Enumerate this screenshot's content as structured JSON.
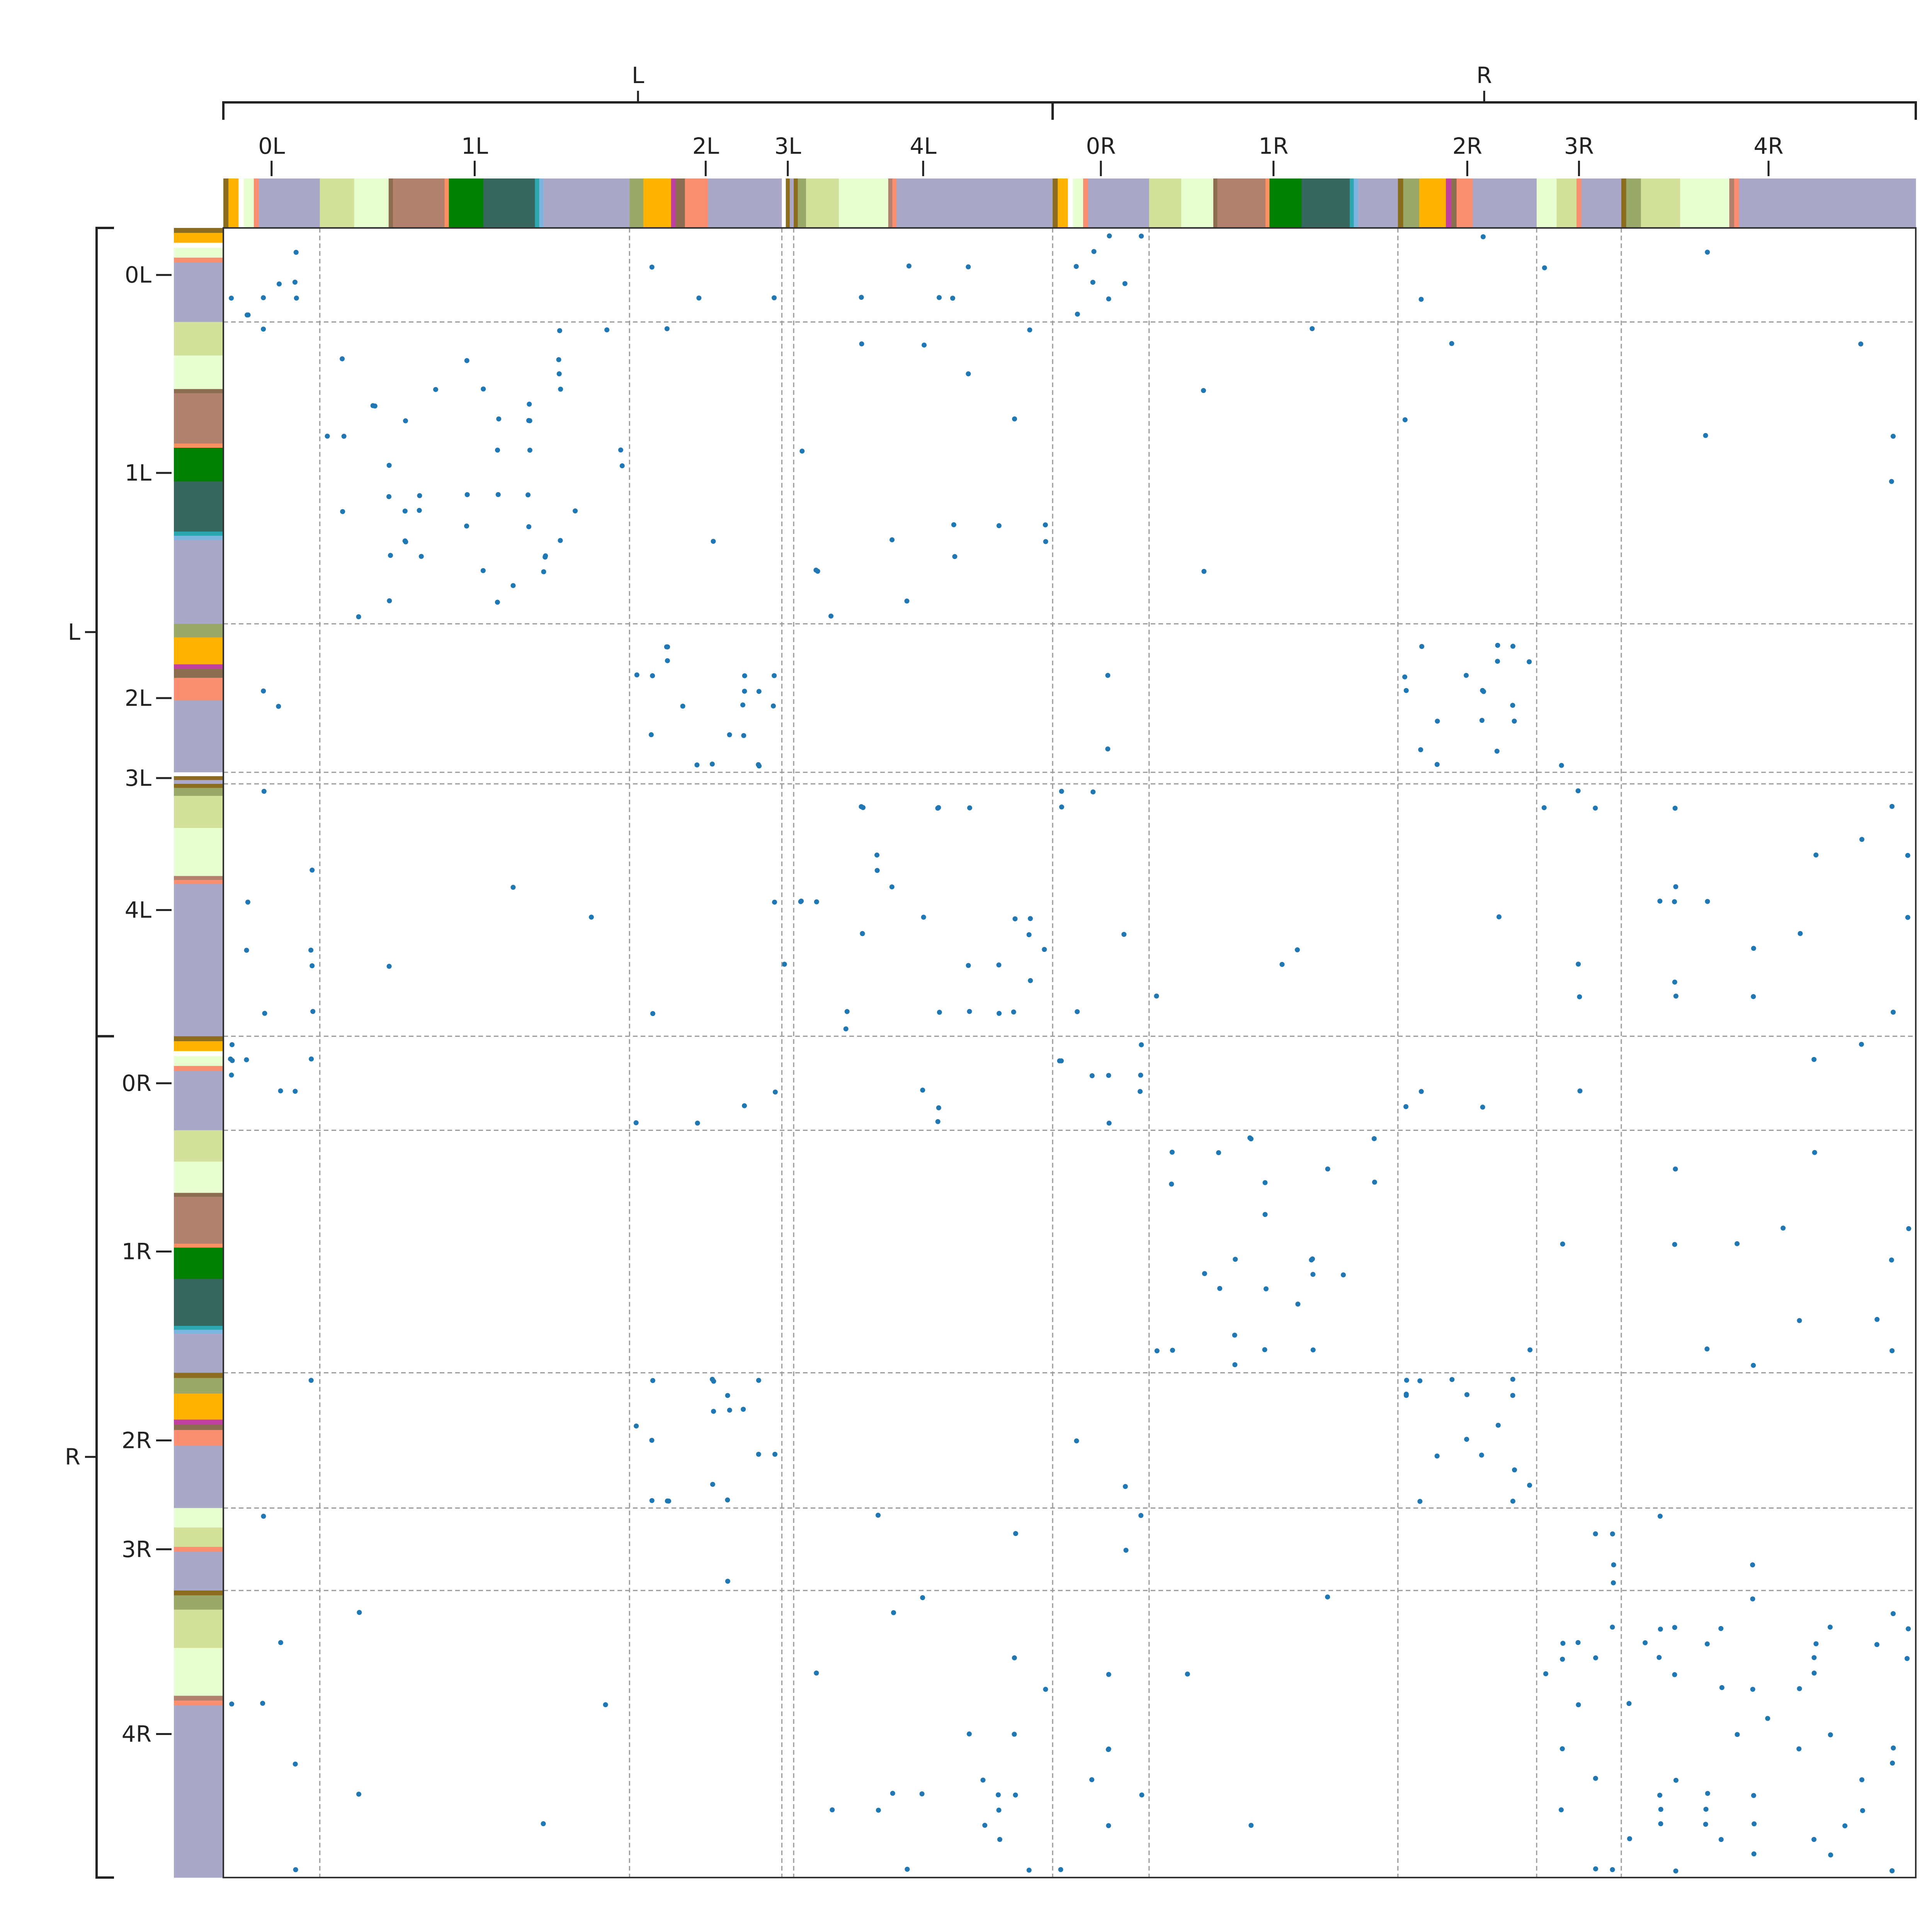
{
  "chart_data": {
    "type": "scatter",
    "title": "",
    "xlabel": "",
    "ylabel": "",
    "grid": false,
    "legend": "none",
    "groups": [
      "L",
      "R"
    ],
    "blocks": [
      "0L",
      "1L",
      "2L",
      "3L",
      "4L",
      "0R",
      "1R",
      "2R",
      "3R",
      "4R"
    ],
    "block_fractions": [
      0.057,
      0.183,
      0.09,
      0.007,
      0.153,
      0.057,
      0.147,
      0.082,
      0.05,
      0.174
    ],
    "block_groups": [
      "L",
      "L",
      "L",
      "L",
      "L",
      "R",
      "R",
      "R",
      "R",
      "R"
    ],
    "point_color": "#1f77b4",
    "divider_color": "#999999",
    "density_matrix": [
      [
        0.22,
        0.0,
        0.05,
        0.02,
        0.05,
        0.22,
        0.0,
        0.03,
        0.02,
        0.01
      ],
      [
        0.01,
        0.12,
        0.01,
        0.0,
        0.05,
        0.0,
        0.01,
        0.01,
        0.0,
        0.01
      ],
      [
        0.04,
        0.0,
        0.2,
        0.05,
        0.0,
        0.04,
        0.0,
        0.2,
        0.02,
        0.0
      ],
      [
        0.0,
        0.0,
        0.0,
        0.3,
        0.02,
        0.0,
        0.0,
        0.0,
        0.05,
        0.0
      ],
      [
        0.08,
        0.01,
        0.01,
        0.1,
        0.1,
        0.05,
        0.01,
        0.01,
        0.06,
        0.05
      ],
      [
        0.2,
        0.0,
        0.06,
        0.01,
        0.03,
        0.22,
        0.0,
        0.05,
        0.04,
        0.02
      ],
      [
        0.0,
        0.0,
        0.0,
        0.0,
        0.0,
        0.0,
        0.1,
        0.01,
        0.01,
        0.04
      ],
      [
        0.02,
        0.0,
        0.2,
        0.0,
        0.0,
        0.03,
        0.0,
        0.2,
        0.01,
        0.0
      ],
      [
        0.02,
        0.0,
        0.02,
        0.05,
        0.02,
        0.06,
        0.0,
        0.01,
        0.12,
        0.02
      ],
      [
        0.04,
        0.01,
        0.0,
        0.0,
        0.06,
        0.06,
        0.01,
        0.0,
        0.12,
        0.13
      ]
    ],
    "color_strips": {
      "0L": [
        "#8c6d1f",
        "#ffb300",
        "#ffffff",
        "#e8ffd2",
        "#fb8f72",
        "#aaa8c8"
      ],
      "1L": [
        "#d4e19a",
        "#e8ffd2",
        "#8c6d50",
        "#b3826f",
        "#ff9060",
        "#008000",
        "#36665e",
        "#2ca7b0",
        "#7ab6e0",
        "#aaa8c8"
      ],
      "2L": [
        "#9aa86a",
        "#ffb300",
        "#c040a0",
        "#8c6d50",
        "#fb8f72",
        "#aaa8c8"
      ],
      "3L": [
        "#ffffff",
        "#8c6d1f",
        "#aaa8c8"
      ],
      "4L": [
        "#8c6d1f",
        "#9aa86a",
        "#d4e19a",
        "#e8ffd2",
        "#b3826f",
        "#fb8f72",
        "#aaa8c8"
      ],
      "0R": [
        "#8c6d1f",
        "#ffb300",
        "#ffffff",
        "#e8ffd2",
        "#fb8f72",
        "#aaa8c8"
      ],
      "1R": [
        "#d4e19a",
        "#e8ffd2",
        "#8c6d50",
        "#b3826f",
        "#ff9060",
        "#008000",
        "#36665e",
        "#2ca7b0",
        "#7ab6e0",
        "#aaa8c8"
      ],
      "2R": [
        "#8c6d1f",
        "#9aa86a",
        "#ffb300",
        "#c040a0",
        "#8c6d50",
        "#fb8f72",
        "#aaa8c8"
      ],
      "3R": [
        "#e8ffd2",
        "#d4e19a",
        "#fb8f72",
        "#aaa8c8"
      ],
      "4R": [
        "#8c6d1f",
        "#9aa86a",
        "#d4e19a",
        "#e8ffd2",
        "#b3826f",
        "#fb8f72",
        "#aaa8c8"
      ]
    },
    "color_strip_weights": {
      "0L": [
        1,
        2,
        1,
        2,
        1,
        12
      ],
      "1L": [
        8,
        8,
        1,
        12,
        1,
        8,
        12,
        1,
        1,
        20
      ],
      "2L": [
        3,
        6,
        1,
        2,
        5,
        16
      ],
      "3L": [
        1,
        1,
        1
      ],
      "4L": [
        1,
        2,
        8,
        12,
        1,
        1,
        38
      ],
      "0R": [
        1,
        2,
        1,
        2,
        1,
        12
      ],
      "1R": [
        8,
        8,
        1,
        12,
        1,
        8,
        12,
        1,
        1,
        10
      ],
      "2R": [
        1,
        3,
        5,
        1,
        1,
        3,
        12
      ],
      "3R": [
        4,
        4,
        1,
        8
      ],
      "4R": [
        1,
        3,
        8,
        10,
        1,
        1,
        36
      ]
    }
  }
}
